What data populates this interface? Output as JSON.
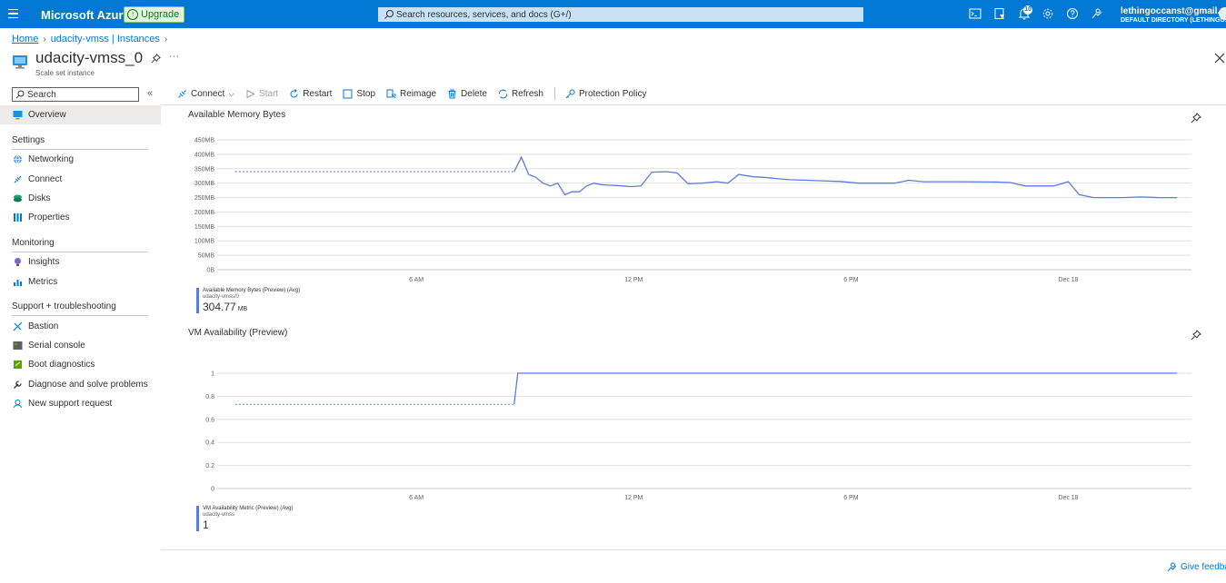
{
  "topbar": {
    "brand": "Microsoft Azure",
    "upgrade_label": "Upgrade",
    "search_placeholder": "Search resources, services, and docs (G+/)",
    "notifications_count": "10",
    "account_email": "lethingoccanst@gmail.c...",
    "account_directory": "DEFAULT DIRECTORY (LETHINGO..."
  },
  "breadcrumb": [
    "Home",
    "udacity-vmss | Instances"
  ],
  "page": {
    "title": "udacity-vmss_0",
    "subtitle": "Scale set instance"
  },
  "sidebar": {
    "search_placeholder": "Search",
    "overview": "Overview",
    "sections": [
      {
        "title": "Settings",
        "items": [
          "Networking",
          "Connect",
          "Disks",
          "Properties"
        ]
      },
      {
        "title": "Monitoring",
        "items": [
          "Insights",
          "Metrics"
        ]
      },
      {
        "title": "Support + troubleshooting",
        "items": [
          "Bastion",
          "Serial console",
          "Boot diagnostics",
          "Diagnose and solve problems",
          "New support request"
        ]
      }
    ]
  },
  "toolbar": {
    "connect": "Connect",
    "start": "Start",
    "restart": "Restart",
    "stop": "Stop",
    "reimage": "Reimage",
    "delete": "Delete",
    "refresh": "Refresh",
    "protection_policy": "Protection Policy"
  },
  "colors": {
    "accent": "#0078d4",
    "series": "#5b7be0"
  },
  "chart_data": [
    {
      "type": "line",
      "title": "Available Memory Bytes",
      "y_ticks": [
        "0B",
        "50MB",
        "100MB",
        "150MB",
        "200MB",
        "250MB",
        "300MB",
        "350MB",
        "400MB",
        "450MB"
      ],
      "ylim": [
        0,
        450
      ],
      "x_ticks": [
        "6 AM",
        "12 PM",
        "6 PM",
        "Dec 18"
      ],
      "x_tick_hours": [
        6,
        12,
        18,
        24
      ],
      "xlim_hours": [
        0,
        27.4
      ],
      "dashed_segment": {
        "x": [
          1,
          8.7
        ],
        "y": [
          340,
          340
        ]
      },
      "series": [
        {
          "legend_label": "Available Memory Bytes (Preview) (Avg)",
          "resource": "udacity-vmss/0",
          "summary_value": "304.77",
          "summary_unit": "MB",
          "x": [
            8.7,
            8.9,
            9.1,
            9.3,
            9.5,
            9.7,
            9.9,
            10.1,
            10.3,
            10.5,
            10.7,
            10.9,
            11.1,
            11.3,
            11.5,
            11.7,
            11.9,
            12.2,
            12.5,
            12.9,
            13.2,
            13.5,
            13.9,
            14.3,
            14.6,
            14.9,
            15.3,
            15.6,
            16.0,
            16.3,
            16.8,
            17.2,
            17.7,
            18.2,
            18.7,
            19.2,
            19.6,
            20.0,
            21.0,
            22.0,
            22.4,
            22.8,
            23.2,
            23.6,
            24.0,
            24.3,
            24.7,
            25.1,
            25.5,
            26.0,
            26.5,
            27.0
          ],
          "y": [
            340,
            390,
            330,
            320,
            300,
            290,
            300,
            260,
            270,
            270,
            290,
            300,
            295,
            293,
            292,
            290,
            288,
            290,
            338,
            340,
            335,
            298,
            300,
            305,
            300,
            330,
            322,
            320,
            315,
            312,
            310,
            308,
            306,
            300,
            300,
            300,
            310,
            305,
            305,
            304,
            302,
            290,
            290,
            290,
            305,
            260,
            250,
            250,
            250,
            252,
            250,
            250
          ]
        }
      ]
    },
    {
      "type": "line",
      "title": "VM Availability (Preview)",
      "y_ticks": [
        "0",
        "0.2",
        "0.4",
        "0.6",
        "0.8",
        "1"
      ],
      "ylim": [
        0,
        1
      ],
      "x_ticks": [
        "6 AM",
        "12 PM",
        "6 PM",
        "Dec 18"
      ],
      "x_tick_hours": [
        6,
        12,
        18,
        24
      ],
      "xlim_hours": [
        0,
        27.4
      ],
      "dashed_segment": {
        "x": [
          1,
          8.7
        ],
        "y": [
          0.73,
          0.73
        ]
      },
      "series": [
        {
          "legend_label": "VM Availability Metric (Preview) (Avg)",
          "resource": "udacity-vmss",
          "summary_value": "1",
          "summary_unit": "",
          "x": [
            8.7,
            8.8,
            27.0
          ],
          "y": [
            0.73,
            1,
            1
          ]
        }
      ]
    }
  ],
  "footer": {
    "feedback": "Give feedbac"
  }
}
